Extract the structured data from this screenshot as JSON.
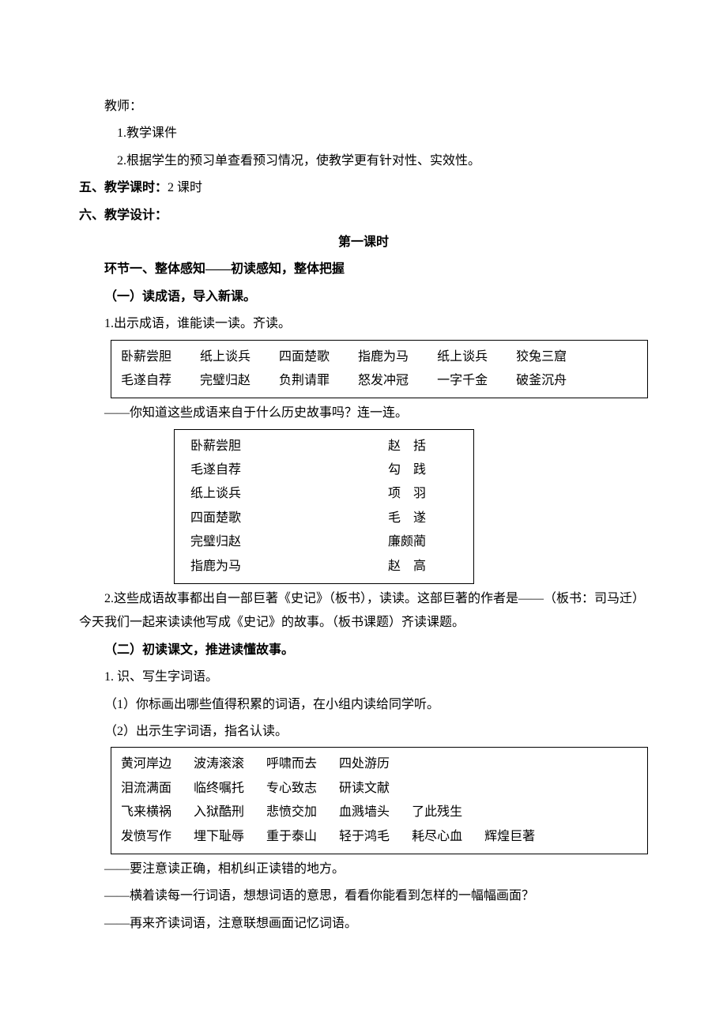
{
  "colors": {
    "text": "#000000",
    "bg": "#ffffff",
    "border": "#000000"
  },
  "font": {
    "family": "SimSun",
    "size": 16,
    "line_height": 1.9
  },
  "intro": {
    "teacher": "教师：",
    "p1": "1.教学课件",
    "p2": "2.根据学生的预习单查看预习情况，使教学更有针对性、实效性。"
  },
  "section5": {
    "title": "五、教学课时：",
    "content": "2 课时"
  },
  "section6": {
    "title": "六、教学设计：",
    "lesson": "第一课时",
    "step1": {
      "title": "环节一、整体感知——初读感知，整体把握",
      "sub1": "（一）读成语，导入新课。",
      "line1": "1.出示成语，谁能读一读。齐读。",
      "idiom_rows": [
        [
          "卧薪尝胆",
          "纸上谈兵",
          "四面楚歌",
          "指鹿为马",
          "纸上谈兵",
          "狡兔三窟"
        ],
        [
          "毛遂自荐",
          "完璧归赵",
          "负荆请罪",
          "怒发冲冠",
          "一字千金",
          "破釜沉舟"
        ]
      ],
      "line2": "——你知道这些成语来自于什么历史故事吗？连一连。",
      "matches": [
        {
          "l": "卧薪尝胆",
          "r": "赵　括"
        },
        {
          "l": "毛遂自荐",
          "r": "勾　践"
        },
        {
          "l": "纸上谈兵",
          "r": "项　羽"
        },
        {
          "l": "四面楚歌",
          "r": "毛　遂"
        },
        {
          "l": "完璧归赵",
          "r": "廉颇蔺"
        },
        {
          "l": "指鹿为马",
          "r": "赵　高"
        }
      ],
      "line3": "2.这些成语故事都出自一部巨著《史记》（板书），读读。这部巨著的作者是——（板书：司马迁）今天我们一起来读读他写成《史记》的故事。（板书课题）齐读课题。",
      "sub2": "（二）初读课文，推进读懂故事。",
      "line4": "1. 识、写生字词语。",
      "line5": "（1）你标画出哪些值得积累的词语，在小组内读给同学听。",
      "line6": "（2）出示生字词语，指名认读。",
      "word_rows": [
        [
          "黄河岸边",
          "波涛滚滚",
          "呼啸而去",
          "四处游历"
        ],
        [
          "泪流满面",
          "临终嘱托",
          "专心致志",
          "研读文献"
        ],
        [
          "飞来横祸",
          "入狱酷刑",
          "悲愤交加",
          "血溅墙头",
          "了此残生"
        ],
        [
          "发愤写作",
          "埋下耻辱",
          "重于泰山",
          "轻于鸿毛",
          "耗尽心血",
          "辉煌巨著"
        ]
      ],
      "line7": "——要注意读正确，相机纠正读错的地方。",
      "line8": "——横着读每一行词语，想想词语的意思，看看你能看到怎样的一幅幅画面？",
      "line9": "——再来齐读词语，注意联想画面记忆词语。"
    }
  }
}
